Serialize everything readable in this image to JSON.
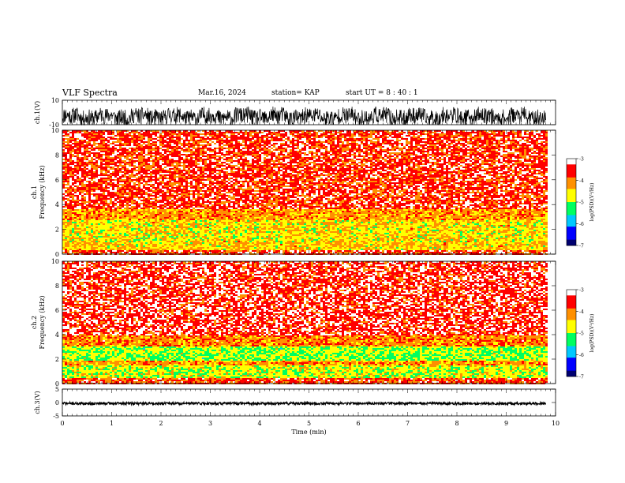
{
  "header": {
    "title": "VLF Spectra",
    "date": "Mar.16, 2024",
    "station": "station= KAP",
    "start": "start UT =  8 : 40 : 1"
  },
  "chart_data": [
    {
      "type": "line",
      "panel": "ch1-waveform",
      "ylabel": "ch.1(V)",
      "ylim": [
        -10,
        10
      ],
      "yticks": [
        "10",
        "-10"
      ],
      "x_range_min": [
        0,
        9.8
      ],
      "description_values": {
        "typical_min": -8,
        "typical_max": 7
      }
    },
    {
      "type": "heatmap",
      "panel": "ch1-spectrogram",
      "ylabel": "ch.1\nFrequency (kHz)",
      "ylim": [
        0,
        10
      ],
      "yticks": [
        "0",
        "2",
        "4",
        "6",
        "8",
        "10"
      ],
      "x_range_min": [
        0,
        9.8
      ],
      "bands_kHz": [
        {
          "from": 0.0,
          "to": 0.4,
          "log_psd": -3.6
        },
        {
          "from": 0.4,
          "to": 1.0,
          "log_psd": -4.5
        },
        {
          "from": 1.0,
          "to": 2.8,
          "log_psd": -4.6
        },
        {
          "from": 2.8,
          "to": 3.7,
          "log_psd": -4.2
        },
        {
          "from": 3.7,
          "to": 10.0,
          "log_psd": -3.6
        }
      ],
      "colorbar": {
        "label": "log(PSD)(V²/Hz)",
        "range": [
          -7,
          -3
        ],
        "ticks": [
          "-3",
          "-4",
          "-5",
          "-6",
          "-7"
        ]
      }
    },
    {
      "type": "heatmap",
      "panel": "ch2-spectrogram",
      "ylabel": "ch.2\nFrequency (kHz)",
      "ylim": [
        0,
        10
      ],
      "yticks": [
        "0",
        "2",
        "4",
        "6",
        "8",
        "10"
      ],
      "x_range_min": [
        0,
        9.8
      ],
      "bands_kHz": [
        {
          "from": 0.0,
          "to": 0.5,
          "log_psd": -3.7
        },
        {
          "from": 0.5,
          "to": 1.6,
          "log_psd": -4.8
        },
        {
          "from": 1.6,
          "to": 2.0,
          "log_psd": -4.2
        },
        {
          "from": 2.0,
          "to": 3.1,
          "log_psd": -5.0
        },
        {
          "from": 3.1,
          "to": 4.0,
          "log_psd": -4.1
        },
        {
          "from": 4.0,
          "to": 10.0,
          "log_psd": -3.5
        }
      ],
      "colorbar": {
        "label": "log(PSD)(V²/Hz)",
        "range": [
          -7,
          -3
        ],
        "ticks": [
          "-3",
          "-4",
          "-5",
          "-6",
          "-7"
        ]
      }
    },
    {
      "type": "line",
      "panel": "ch3-waveform",
      "ylabel": "ch.3(V)",
      "ylim": [
        -5,
        5
      ],
      "yticks": [
        "5",
        "0",
        "-5"
      ],
      "x_range_min": [
        0,
        9.8
      ],
      "description_values": {
        "typical_min": -0.8,
        "typical_max": 0.1
      }
    }
  ],
  "xaxis": {
    "label": "Time (min)",
    "xlim": [
      0,
      10
    ],
    "ticks": [
      "0",
      "1",
      "2",
      "3",
      "4",
      "5",
      "6",
      "7",
      "8",
      "9",
      "10"
    ]
  },
  "colors": {
    "ink": "#000000",
    "cmap": [
      "#000070",
      "#0000ff",
      "#00c8ff",
      "#00ff60",
      "#ffff00",
      "#ff9000",
      "#ff0000",
      "#ffffff"
    ]
  }
}
